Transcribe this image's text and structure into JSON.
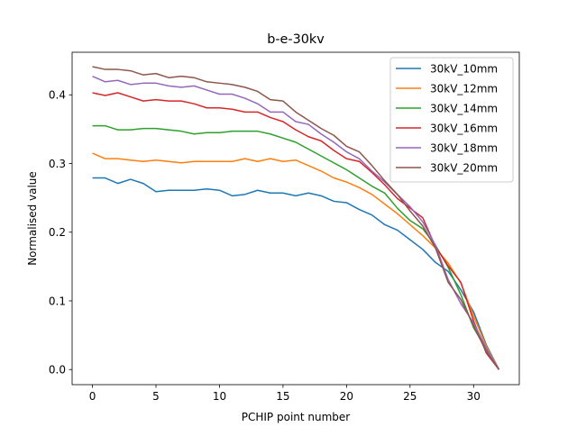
{
  "chart_data": {
    "type": "line",
    "title": "b-e-30kv",
    "xlabel": "PCHIP point number",
    "ylabel": "Normalised value",
    "xlim": [
      -1.6,
      33.6
    ],
    "ylim": [
      -0.022,
      0.462
    ],
    "xticks": [
      0,
      5,
      10,
      15,
      20,
      25,
      30
    ],
    "yticks": [
      0.0,
      0.1,
      0.2,
      0.3,
      0.4
    ],
    "ytick_labels": [
      "0.0",
      "0.1",
      "0.2",
      "0.3",
      "0.4"
    ],
    "grid": false,
    "legend_position": "top-right",
    "x": [
      0,
      1,
      2,
      3,
      4,
      5,
      6,
      7,
      8,
      9,
      10,
      11,
      12,
      13,
      14,
      15,
      16,
      17,
      18,
      19,
      20,
      21,
      22,
      23,
      24,
      25,
      26,
      27,
      28,
      29,
      30,
      31,
      32
    ],
    "series": [
      {
        "name": "30kV_10mm",
        "color": "#1f77b4",
        "values": [
          0.279,
          0.279,
          0.271,
          0.277,
          0.271,
          0.259,
          0.261,
          0.261,
          0.261,
          0.263,
          0.261,
          0.253,
          0.255,
          0.261,
          0.257,
          0.257,
          0.253,
          0.257,
          0.253,
          0.245,
          0.243,
          0.233,
          0.225,
          0.211,
          0.203,
          0.189,
          0.175,
          0.156,
          0.143,
          0.116,
          0.084,
          0.036,
          0.0
        ]
      },
      {
        "name": "30kV_12mm",
        "color": "#ff7f0e",
        "values": [
          0.315,
          0.307,
          0.307,
          0.305,
          0.303,
          0.305,
          0.303,
          0.301,
          0.303,
          0.303,
          0.303,
          0.303,
          0.307,
          0.303,
          0.307,
          0.303,
          0.305,
          0.297,
          0.289,
          0.279,
          0.273,
          0.265,
          0.255,
          0.241,
          0.227,
          0.211,
          0.195,
          0.177,
          0.155,
          0.126,
          0.078,
          0.034,
          0.0
        ]
      },
      {
        "name": "30kV_14mm",
        "color": "#2ca02c",
        "values": [
          0.355,
          0.355,
          0.349,
          0.349,
          0.351,
          0.351,
          0.349,
          0.347,
          0.343,
          0.345,
          0.345,
          0.347,
          0.347,
          0.347,
          0.343,
          0.337,
          0.331,
          0.321,
          0.311,
          0.301,
          0.291,
          0.279,
          0.267,
          0.257,
          0.235,
          0.217,
          0.205,
          0.181,
          0.149,
          0.109,
          0.061,
          0.029,
          0.0
        ]
      },
      {
        "name": "30kV_16mm",
        "color": "#d62728",
        "values": [
          0.403,
          0.399,
          0.403,
          0.397,
          0.391,
          0.393,
          0.391,
          0.391,
          0.387,
          0.381,
          0.381,
          0.379,
          0.375,
          0.375,
          0.367,
          0.361,
          0.349,
          0.339,
          0.333,
          0.319,
          0.307,
          0.303,
          0.287,
          0.269,
          0.249,
          0.235,
          0.221,
          0.179,
          0.151,
          0.127,
          0.071,
          0.024,
          0.0
        ]
      },
      {
        "name": "30kV_18mm",
        "color": "#9467bd",
        "values": [
          0.427,
          0.419,
          0.421,
          0.415,
          0.417,
          0.417,
          0.413,
          0.411,
          0.413,
          0.407,
          0.401,
          0.401,
          0.395,
          0.387,
          0.375,
          0.375,
          0.361,
          0.357,
          0.343,
          0.331,
          0.317,
          0.307,
          0.289,
          0.273,
          0.255,
          0.237,
          0.215,
          0.181,
          0.131,
          0.096,
          0.068,
          0.031,
          0.0
        ]
      },
      {
        "name": "30kV_20mm",
        "color": "#8c564b",
        "values": [
          0.441,
          0.437,
          0.437,
          0.435,
          0.429,
          0.431,
          0.425,
          0.427,
          0.425,
          0.419,
          0.417,
          0.415,
          0.411,
          0.405,
          0.393,
          0.391,
          0.375,
          0.363,
          0.351,
          0.341,
          0.325,
          0.317,
          0.297,
          0.275,
          0.255,
          0.231,
          0.209,
          0.177,
          0.127,
          0.102,
          0.064,
          0.026,
          0.0
        ]
      }
    ]
  }
}
